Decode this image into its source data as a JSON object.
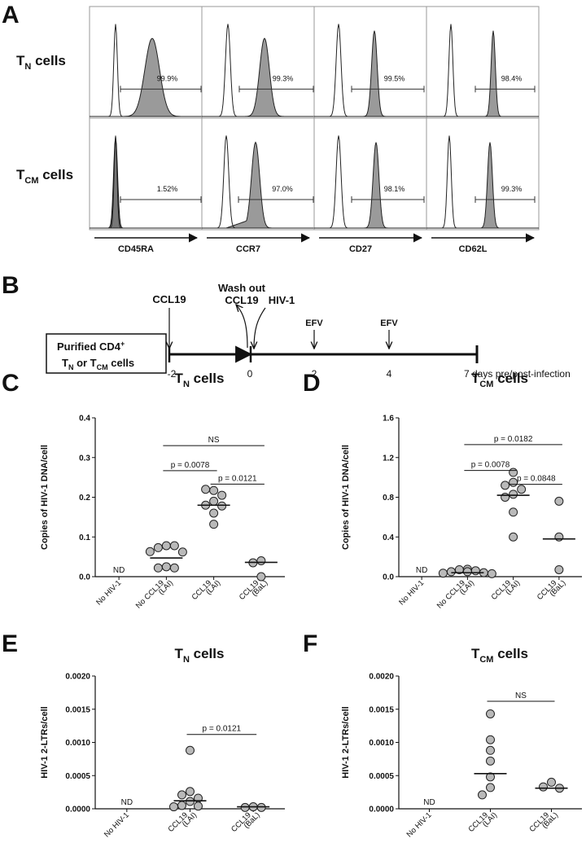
{
  "panels": {
    "A": "A",
    "B": "B",
    "C": "C",
    "D": "D",
    "E": "E",
    "F": "F"
  },
  "panel_a": {
    "rows": [
      {
        "main": "T",
        "sub": "N",
        "rest": " cells"
      },
      {
        "main": "T",
        "sub": "CM",
        "rest": " cells"
      }
    ],
    "markers": [
      "CD45RA",
      "CCR7",
      "CD27",
      "CD62L"
    ],
    "percentages": [
      [
        "99.9%",
        "99.3%",
        "99.5%",
        "98.4%"
      ],
      [
        "1.52%",
        "97.0%",
        "98.1%",
        "99.3%"
      ]
    ]
  },
  "panel_b": {
    "box_line1_main": "Purified CD4",
    "box_line1_sup": "+",
    "box_line2_a": "T",
    "box_line2_a_sub": "N",
    "box_line2_b": " or T",
    "box_line2_b_sub": "CM",
    "box_line2_c": " cells",
    "ccl19": "CCL19",
    "washout_line1": "Wash out",
    "washout_line2": "CCL19",
    "hiv": "HIV-1",
    "efv1": "EFV",
    "efv2": "EFV",
    "ticks": [
      "-2",
      "0",
      "2",
      "4",
      "7 days pre/post-infection"
    ]
  },
  "chart_data": [
    {
      "panel": "C",
      "type": "scatter",
      "title": {
        "main": "T",
        "sub": "N",
        "rest": " cells"
      },
      "ylabel": "Copies of HIV-1 DNA/cell",
      "ylim": [
        0,
        0.4
      ],
      "yticks": [
        "0.0",
        "0.1",
        "0.2",
        "0.3",
        "0.4"
      ],
      "categories": [
        [
          "No HIV-1"
        ],
        [
          "No CCL19",
          "(LAI)"
        ],
        [
          "CCL19",
          "(LAI)"
        ],
        [
          "CCL19",
          "(BaL)"
        ]
      ],
      "nd_label": "ND",
      "groups": [
        {
          "category": 0,
          "values": [],
          "median": null
        },
        {
          "category": 1,
          "values": [
            0.078,
            0.073,
            0.078,
            0.063,
            0.062,
            0.025,
            0.022,
            0.022
          ],
          "median": 0.047
        },
        {
          "category": 2,
          "values": [
            0.217,
            0.22,
            0.205,
            0.19,
            0.18,
            0.178,
            0.16,
            0.132
          ],
          "median": 0.18
        },
        {
          "category": 3,
          "values": [
            0.04,
            0.035,
            0.0
          ],
          "median": 0.036
        }
      ],
      "comparisons": [
        {
          "from": 1,
          "to": 2,
          "label": "p = 0.0078",
          "y": 0.267
        },
        {
          "from": 2,
          "to": 3,
          "label": "p = 0.0121",
          "y": 0.233
        },
        {
          "from": 1,
          "to": 3,
          "label": "NS",
          "y": 0.33
        }
      ]
    },
    {
      "panel": "D",
      "type": "scatter",
      "title": {
        "main": "T",
        "sub": "CM",
        "rest": " cells"
      },
      "ylabel": "Copies of HIV-1 DNA/cell",
      "ylim": [
        0,
        1.6
      ],
      "yticks": [
        "0.0",
        "0.4",
        "0.8",
        "1.2",
        "1.6"
      ],
      "categories": [
        [
          "No HIV-1"
        ],
        [
          "No CCL19",
          "(LAI)"
        ],
        [
          "CCL19",
          "(LAI)"
        ],
        [
          "CCL19",
          "(BaL)"
        ]
      ],
      "nd_label": "ND",
      "groups": [
        {
          "category": 0,
          "values": [],
          "median": null
        },
        {
          "category": 1,
          "values": [
            0.075,
            0.07,
            0.06,
            0.05,
            0.04,
            0.035,
            0.03,
            0.05
          ],
          "median": 0.04
        },
        {
          "category": 2,
          "values": [
            1.05,
            0.95,
            0.92,
            0.88,
            0.83,
            0.8,
            0.65,
            0.4
          ],
          "median": 0.82
        },
        {
          "category": 3,
          "values": [
            0.76,
            0.4,
            0.07
          ],
          "median": 0.38
        }
      ],
      "comparisons": [
        {
          "from": 1,
          "to": 2,
          "label": "p = 0.0078",
          "y": 1.07
        },
        {
          "from": 2,
          "to": 3,
          "label": "p = 0.0848",
          "y": 0.93
        },
        {
          "from": 1,
          "to": 3,
          "label": "p = 0.0182",
          "y": 1.33
        }
      ]
    },
    {
      "panel": "E",
      "type": "scatter",
      "title": {
        "main": "T",
        "sub": "N",
        "rest": " cells"
      },
      "ylabel": "HIV-1 2-LTRs/cell",
      "ylim": [
        0,
        0.002
      ],
      "yticks": [
        "0.0000",
        "0.0005",
        "0.0010",
        "0.0015",
        "0.0020"
      ],
      "categories": [
        [
          "No HIV-1"
        ],
        [
          "CCL19",
          "(LAI)"
        ],
        [
          "CCL19",
          "(BaL)"
        ]
      ],
      "nd_label": "ND",
      "groups": [
        {
          "category": 0,
          "values": [],
          "median": null
        },
        {
          "category": 1,
          "values": [
            0.00088,
            0.00026,
            0.00021,
            0.00016,
            0.00011,
            5e-05,
            4e-05,
            3e-05
          ],
          "median": 0.00012
        },
        {
          "category": 2,
          "values": [
            3e-05,
            2e-05,
            2e-05
          ],
          "median": 3e-05
        }
      ],
      "comparisons": [
        {
          "from": 1,
          "to": 2,
          "label": "p = 0.0121",
          "y": 0.00112
        }
      ]
    },
    {
      "panel": "F",
      "type": "scatter",
      "title": {
        "main": "T",
        "sub": "CM",
        "rest": " cells"
      },
      "ylabel": "HIV-1 2-LTRs/cell",
      "ylim": [
        0,
        0.002
      ],
      "yticks": [
        "0.0000",
        "0.0005",
        "0.0010",
        "0.0015",
        "0.0020"
      ],
      "categories": [
        [
          "No HIV-1"
        ],
        [
          "CCL19",
          "(LAI)"
        ],
        [
          "CCL19",
          "(BaL)"
        ]
      ],
      "nd_label": "ND",
      "groups": [
        {
          "category": 0,
          "values": [],
          "median": null
        },
        {
          "category": 1,
          "values": [
            0.00143,
            0.00104,
            0.00088,
            0.00072,
            0.00048,
            0.00032,
            0.00021
          ],
          "median": 0.00053
        },
        {
          "category": 2,
          "values": [
            0.0004,
            0.00033,
            0.00031
          ],
          "median": 0.00031
        }
      ],
      "comparisons": [
        {
          "from": 1,
          "to": 2,
          "label": "NS",
          "y": 0.00162
        }
      ]
    }
  ]
}
